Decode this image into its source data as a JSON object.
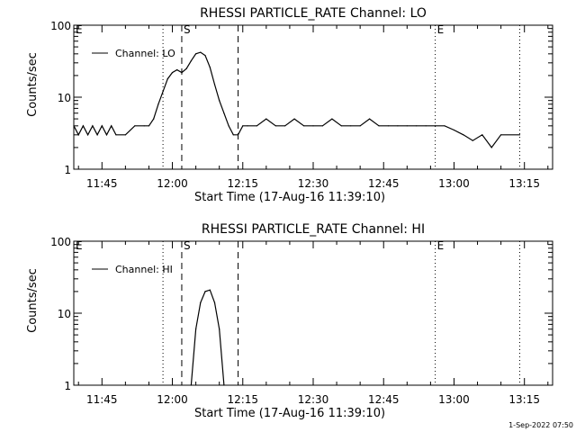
{
  "footer": {
    "timestamp": "1-Sep-2022 07:50"
  },
  "chart_data": [
    {
      "type": "line",
      "title": "RHESSI PARTICLE_RATE Channel: LO",
      "xlabel": "Start Time (17-Aug-16 11:39:10)",
      "ylabel": "Counts/sec",
      "yscale": "log",
      "ylim": [
        1,
        100
      ],
      "xlim": [
        "11:39",
        "13:21"
      ],
      "x_ticks": [
        "11:45",
        "12:00",
        "12:15",
        "12:30",
        "12:45",
        "13:00",
        "13:15"
      ],
      "y_ticks": [
        "1",
        "10",
        "100"
      ],
      "grid": false,
      "legend": {
        "position": "top-left",
        "entries": [
          "Channel: LO"
        ]
      },
      "markers": [
        {
          "time": "11:39",
          "type": "label",
          "label": "E"
        },
        {
          "time": "11:58",
          "type": "dotted",
          "label": ""
        },
        {
          "time": "12:02",
          "type": "dashed",
          "label": "S"
        },
        {
          "time": "12:14",
          "type": "dashed",
          "label": ""
        },
        {
          "time": "12:56",
          "type": "dotted",
          "label": "E"
        },
        {
          "time": "13:14",
          "type": "dotted",
          "label": ""
        }
      ],
      "series": [
        {
          "name": "Channel: LO",
          "x": [
            "11:39",
            "11:40",
            "11:41",
            "11:42",
            "11:43",
            "11:44",
            "11:45",
            "11:46",
            "11:47",
            "11:48",
            "11:50",
            "11:52",
            "11:54",
            "11:55",
            "11:56",
            "11:57",
            "11:58",
            "11:59",
            "12:00",
            "12:01",
            "12:02",
            "12:03",
            "12:04",
            "12:05",
            "12:06",
            "12:07",
            "12:08",
            "12:09",
            "12:10",
            "12:11",
            "12:12",
            "12:13",
            "12:14",
            "12:15",
            "12:16",
            "12:18",
            "12:20",
            "12:22",
            "12:24",
            "12:26",
            "12:28",
            "12:30",
            "12:32",
            "12:34",
            "12:36",
            "12:38",
            "12:40",
            "12:42",
            "12:44",
            "12:46",
            "12:48",
            "12:50",
            "12:52",
            "12:54",
            "12:56",
            "12:58",
            "13:00",
            "13:02",
            "13:04",
            "13:06",
            "13:08",
            "13:10",
            "13:14"
          ],
          "values": [
            4,
            3,
            4,
            3,
            4,
            3,
            4,
            3,
            4,
            3,
            3,
            4,
            4,
            4,
            5,
            8,
            12,
            18,
            22,
            24,
            22,
            25,
            32,
            40,
            42,
            38,
            26,
            15,
            9,
            6,
            4,
            3,
            3,
            4,
            4,
            4,
            5,
            4,
            4,
            5,
            4,
            4,
            4,
            5,
            4,
            4,
            4,
            5,
            4,
            4,
            4,
            4,
            4,
            4,
            4,
            4,
            3.5,
            3,
            2.5,
            3,
            2,
            3,
            3
          ]
        }
      ]
    },
    {
      "type": "line",
      "title": "RHESSI PARTICLE_RATE Channel: HI",
      "xlabel": "Start Time (17-Aug-16 11:39:10)",
      "ylabel": "Counts/sec",
      "yscale": "log",
      "ylim": [
        1,
        100
      ],
      "xlim": [
        "11:39",
        "13:21"
      ],
      "x_ticks": [
        "11:45",
        "12:00",
        "12:15",
        "12:30",
        "12:45",
        "13:00",
        "13:15"
      ],
      "y_ticks": [
        "1",
        "10",
        "100"
      ],
      "grid": false,
      "legend": {
        "position": "top-left",
        "entries": [
          "Channel: HI"
        ]
      },
      "markers": [
        {
          "time": "11:39",
          "type": "label",
          "label": "E"
        },
        {
          "time": "11:58",
          "type": "dotted",
          "label": ""
        },
        {
          "time": "12:02",
          "type": "dashed",
          "label": "S"
        },
        {
          "time": "12:14",
          "type": "dashed",
          "label": ""
        },
        {
          "time": "12:56",
          "type": "dotted",
          "label": "E"
        },
        {
          "time": "13:14",
          "type": "dotted",
          "label": ""
        }
      ],
      "series": [
        {
          "name": "Channel: HI",
          "x": [
            "12:04",
            "12:05",
            "12:06",
            "12:07",
            "12:08",
            "12:09",
            "12:10",
            "12:11"
          ],
          "values": [
            1,
            6,
            14,
            20,
            21,
            14,
            6,
            1
          ]
        }
      ]
    }
  ]
}
